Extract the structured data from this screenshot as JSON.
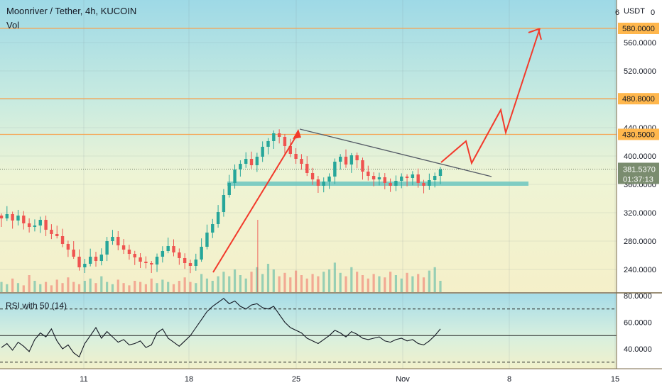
{
  "header": {
    "title": "Moonriver / Tether, 4h, KUCOIN",
    "volume_label": "Vol",
    "currency": "USDT",
    "currency_prefix": "6",
    "currency_suffix": "0"
  },
  "colors": {
    "up": "#26a69a",
    "down": "#ef5350",
    "level_line": "#f7a350",
    "level_label_bg": "#ffb74d",
    "price_tag_bg": "#7a8c6f",
    "arrow": "#f23a2b",
    "trendline": "#555b66",
    "support_zone": "#6cc5c0",
    "rsi_line": "#131722"
  },
  "chart_data": [
    {
      "type": "candlestick",
      "timeframe": "4h",
      "x_ticks": [
        "11",
        "18",
        "25",
        "Nov",
        "8",
        "15"
      ],
      "y_ticks": [
        240,
        280,
        320,
        360,
        400,
        440,
        480,
        520,
        560
      ],
      "ylim": [
        210,
        600
      ],
      "horizontal_levels": [
        {
          "value": 580,
          "label": "580.0000"
        },
        {
          "value": 480.8,
          "label": "480.8000"
        },
        {
          "value": 430.5,
          "label": "430.5000"
        }
      ],
      "current_price": {
        "value": 381.537,
        "label": "381.5370",
        "countdown": "01:37:13"
      },
      "support_zone": {
        "value": 361
      },
      "trendline": {
        "from_value": 438,
        "to_value": 371
      },
      "projected_path": [
        391,
        421,
        390,
        465,
        433,
        580
      ],
      "approx_close_path": [
        312,
        318,
        309,
        316,
        305,
        300,
        302,
        310,
        296,
        290,
        287,
        276,
        268,
        258,
        243,
        248,
        258,
        252,
        261,
        280,
        286,
        274,
        268,
        262,
        257,
        251,
        249,
        247,
        258,
        266,
        273,
        264,
        256,
        249,
        245,
        254,
        272,
        292,
        304,
        321,
        345,
        362,
        381,
        389,
        396,
        387,
        399,
        413,
        421,
        432,
        427,
        414,
        403,
        396,
        389,
        376,
        367,
        358,
        364,
        371,
        392,
        399,
        388,
        401,
        394,
        378,
        372,
        367,
        370,
        362,
        358,
        365,
        371,
        369,
        374,
        362,
        358,
        366,
        372,
        381
      ],
      "volumes": [
        9,
        7,
        12,
        8,
        6,
        15,
        10,
        7,
        9,
        6,
        11,
        8,
        13,
        9,
        7,
        10,
        12,
        8,
        14,
        9,
        7,
        11,
        8,
        6,
        10,
        9,
        7,
        12,
        8,
        11,
        9,
        7,
        10,
        13,
        9,
        8,
        16,
        12,
        10,
        14,
        18,
        14,
        20,
        15,
        12,
        18,
        22,
        16,
        25,
        20,
        14,
        17,
        13,
        19,
        15,
        12,
        16,
        14,
        18,
        20,
        26,
        17,
        14,
        22,
        18,
        15,
        12,
        16,
        14,
        13,
        18,
        15,
        12,
        17,
        14,
        16,
        13,
        19,
        22,
        10
      ]
    },
    {
      "type": "line",
      "title": "RSI with 50 (14)",
      "y_ticks": [
        40,
        60,
        80
      ],
      "ylim": [
        30,
        82
      ],
      "reference_lines": [
        70,
        50,
        30
      ],
      "values": [
        41,
        44,
        39,
        45,
        42,
        38,
        47,
        52,
        49,
        55,
        46,
        40,
        43,
        37,
        34,
        44,
        50,
        56,
        48,
        53,
        49,
        45,
        47,
        43,
        44,
        46,
        41,
        43,
        52,
        55,
        48,
        45,
        42,
        46,
        50,
        56,
        62,
        68,
        72,
        75,
        78,
        74,
        76,
        72,
        70,
        73,
        74,
        71,
        70,
        72,
        66,
        60,
        56,
        54,
        52,
        48,
        46,
        44,
        47,
        50,
        54,
        52,
        49,
        53,
        51,
        48,
        47,
        48,
        49,
        46,
        45,
        47,
        48,
        46,
        47,
        44,
        43,
        46,
        50,
        55
      ]
    }
  ]
}
